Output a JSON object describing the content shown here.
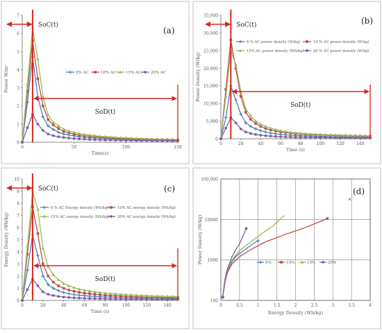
{
  "colors": {
    "6": "#4a7ebb",
    "10": "#be4b48",
    "15": "#98b954",
    "20": "#7d60a0",
    "arrow": "#d7261e",
    "marker": "#c0392b",
    "grid": "#d9d9d9",
    "axis": "#888888",
    "frame": "#bfbfbf",
    "text": "#595959"
  },
  "chart_data": [
    {
      "id": "a",
      "type": "line",
      "panel_label": "(a)",
      "xlabel": "Time(s)",
      "ylabel": "Power W/m²",
      "xlim": [
        0,
        150
      ],
      "ylim": [
        0,
        7
      ],
      "xticks": [
        "0",
        "50",
        "100",
        "150"
      ],
      "yticks": [
        "0",
        "1",
        "2",
        "3",
        "4",
        "5",
        "6",
        "7"
      ],
      "grid": false,
      "legend_position": "top",
      "legend": [
        "6% AC",
        "10% AC",
        "15% AC",
        "20% AC"
      ],
      "annotations": {
        "soc": "SoC(t)",
        "sod": "SoD(t)"
      },
      "series": [
        {
          "name": "6% AC",
          "key": "6",
          "x": [
            0,
            5,
            10,
            15,
            20,
            25,
            30,
            35,
            40,
            45,
            50,
            55,
            60,
            65,
            70,
            75,
            80,
            85,
            90,
            95,
            100,
            105,
            110,
            115,
            120,
            125,
            130,
            135,
            140,
            145,
            150
          ],
          "y": [
            0,
            2.2,
            4.7,
            2.5,
            1.4,
            0.9,
            0.7,
            0.55,
            0.45,
            0.4,
            0.35,
            0.3,
            0.28,
            0.25,
            0.23,
            0.22,
            0.2,
            0.19,
            0.18,
            0.17,
            0.16,
            0.15,
            0.14,
            0.13,
            0.13,
            0.12,
            0.12,
            0.11,
            0.11,
            0.1,
            0.1
          ]
        },
        {
          "name": "10% AC",
          "key": "10",
          "x": [
            0,
            5,
            10,
            15,
            20,
            25,
            30,
            35,
            40,
            45,
            50,
            55,
            60,
            65,
            70,
            75,
            80,
            85,
            90,
            95,
            100,
            105,
            110,
            115,
            120,
            125,
            130,
            135,
            140,
            145,
            150
          ],
          "y": [
            0,
            2.8,
            5.6,
            3.5,
            2.0,
            1.25,
            0.95,
            0.75,
            0.6,
            0.52,
            0.45,
            0.4,
            0.36,
            0.33,
            0.3,
            0.28,
            0.26,
            0.24,
            0.22,
            0.21,
            0.2,
            0.19,
            0.18,
            0.17,
            0.16,
            0.15,
            0.15,
            0.14,
            0.14,
            0.13,
            0.13
          ]
        },
        {
          "name": "15% AC",
          "key": "15",
          "x": [
            0,
            5,
            10,
            15,
            20,
            25,
            30,
            35,
            40,
            45,
            50,
            55,
            60,
            65,
            70,
            75,
            80,
            85,
            90,
            95,
            100,
            105,
            110,
            115,
            120,
            125,
            130,
            135,
            140,
            145,
            150
          ],
          "y": [
            0,
            3.2,
            6.3,
            4.6,
            2.5,
            1.5,
            1.1,
            0.9,
            0.72,
            0.62,
            0.55,
            0.48,
            0.43,
            0.39,
            0.36,
            0.33,
            0.31,
            0.29,
            0.27,
            0.25,
            0.24,
            0.22,
            0.21,
            0.2,
            0.19,
            0.18,
            0.17,
            0.16,
            0.16,
            0.15,
            0.15
          ]
        },
        {
          "name": "20% AC",
          "key": "20",
          "x": [
            0,
            5,
            10,
            15,
            20,
            25,
            30,
            35,
            40,
            45,
            50,
            55,
            60,
            65,
            70,
            75,
            80,
            85,
            90,
            95,
            100,
            105,
            110,
            115,
            120,
            125,
            130,
            135,
            140,
            145,
            150
          ],
          "y": [
            0,
            0.8,
            1.55,
            1.0,
            0.65,
            0.45,
            0.36,
            0.3,
            0.26,
            0.23,
            0.2,
            0.18,
            0.17,
            0.15,
            0.14,
            0.13,
            0.12,
            0.12,
            0.11,
            0.11,
            0.1,
            0.1,
            0.09,
            0.09,
            0.09,
            0.08,
            0.08,
            0.08,
            0.08,
            0.07,
            0.07
          ]
        }
      ]
    },
    {
      "id": "b",
      "type": "line",
      "panel_label": "(b)",
      "xlabel": "Time (s)",
      "ylabel": "Power Density (W/kg)",
      "xlim": [
        0,
        150
      ],
      "ylim": [
        0,
        35000
      ],
      "xticks": [
        "0",
        "20",
        "40",
        "60",
        "80",
        "100",
        "120",
        "140"
      ],
      "yticks": [
        "0",
        "5,000",
        "10,000",
        "15,000",
        "20,000",
        "25,000",
        "30,000",
        "35,000"
      ],
      "grid": false,
      "legend_position": "top",
      "legend": [
        "6 % AC power density (W/kg)",
        "10 % AC power density (W/kg)",
        "15% AC power density (Wh/kg)",
        "20 % AC power density (W/kg)"
      ],
      "annotations": {
        "soc": "SoC(t)",
        "sod": "SoD(t)"
      },
      "series": [
        {
          "name": "6 % AC power density (W/kg)",
          "key": "6",
          "x": [
            0,
            5,
            10,
            15,
            20,
            25,
            30,
            35,
            40,
            45,
            50,
            55,
            60,
            65,
            70,
            75,
            80,
            85,
            90,
            95,
            100,
            105,
            110,
            115,
            120,
            125,
            130,
            135,
            140,
            145,
            150
          ],
          "y": [
            0,
            6000,
            15000,
            11000,
            7000,
            4500,
            3500,
            2800,
            2300,
            1900,
            1600,
            1400,
            1250,
            1100,
            1000,
            900,
            850,
            800,
            750,
            700,
            650,
            620,
            600,
            570,
            550,
            520,
            500,
            480,
            460,
            440,
            420
          ]
        },
        {
          "name": "10 % AC power density (W/kg)",
          "key": "10",
          "x": [
            0,
            5,
            10,
            15,
            20,
            25,
            30,
            35,
            40,
            45,
            50,
            55,
            60,
            65,
            70,
            75,
            80,
            85,
            90,
            95,
            100,
            105,
            110,
            115,
            120,
            125,
            130,
            135,
            140,
            145,
            150
          ],
          "y": [
            0,
            14000,
            28000,
            20000,
            12000,
            7500,
            5500,
            4300,
            3500,
            2900,
            2500,
            2200,
            1950,
            1750,
            1600,
            1450,
            1350,
            1250,
            1150,
            1100,
            1050,
            1000,
            950,
            900,
            870,
            840,
            810,
            780,
            750,
            720,
            700
          ]
        },
        {
          "name": "15% AC power density (Wh/kg)",
          "key": "15",
          "x": [
            0,
            5,
            10,
            15,
            20,
            25,
            30,
            35,
            40,
            45,
            50,
            55,
            60,
            65,
            70,
            75,
            80,
            85,
            90,
            95,
            100,
            105,
            110,
            115,
            120,
            125,
            130,
            135,
            140,
            145,
            150
          ],
          "y": [
            0,
            12000,
            25000,
            21000,
            13500,
            8500,
            6500,
            5000,
            4100,
            3500,
            3000,
            2600,
            2300,
            2050,
            1850,
            1700,
            1550,
            1450,
            1350,
            1250,
            1200,
            1150,
            1100,
            1050,
            1000,
            960,
            920,
            880,
            850,
            820,
            800
          ]
        },
        {
          "name": "20 % AC power density (W/kg)",
          "key": "20",
          "x": [
            0,
            5,
            10,
            15,
            20,
            25,
            30,
            35,
            40,
            45,
            50,
            55,
            60,
            65,
            70,
            75,
            80,
            85,
            90,
            95,
            100,
            105,
            110,
            115,
            120,
            125,
            130,
            135,
            140,
            145,
            150
          ],
          "y": [
            0,
            3000,
            6000,
            4500,
            2800,
            1900,
            1500,
            1200,
            1000,
            850,
            750,
            650,
            580,
            520,
            480,
            440,
            400,
            380,
            350,
            330,
            310,
            290,
            280,
            260,
            250,
            240,
            230,
            220,
            210,
            200,
            190
          ]
        }
      ]
    },
    {
      "id": "c",
      "type": "line",
      "panel_label": "(c)",
      "xlabel": "Time (s)",
      "ylabel": "Energy Density (Wh/kg)",
      "xlim": [
        0,
        150
      ],
      "ylim": [
        0,
        10
      ],
      "xticks": [
        "0",
        "20",
        "40",
        "60",
        "80",
        "100",
        "120",
        "140"
      ],
      "yticks": [
        "0",
        "1",
        "2",
        "3",
        "4",
        "5",
        "6",
        "7",
        "8",
        "9",
        "10"
      ],
      "grid": false,
      "legend_position": "top",
      "legend": [
        "6 % AC Energy density (Wh/kg)",
        "10% AC energy density (Wh/kg)",
        "15% AC energy density (Wh/kg)",
        "20% AC energy density (Wh/kg)"
      ],
      "annotations": {
        "soc": "SoC(t)",
        "sod": "SoD(t)"
      },
      "series": [
        {
          "name": "6 % AC Energy density (Wh/kg)",
          "key": "6",
          "x": [
            0,
            5,
            10,
            15,
            20,
            25,
            30,
            35,
            40,
            45,
            50,
            55,
            60,
            65,
            70,
            75,
            80,
            85,
            90,
            95,
            100,
            105,
            110,
            115,
            120,
            125,
            130,
            135,
            140,
            145,
            150
          ],
          "y": [
            0,
            2.5,
            5.4,
            3.7,
            2.0,
            1.3,
            1.0,
            0.8,
            0.65,
            0.55,
            0.48,
            0.43,
            0.39,
            0.35,
            0.32,
            0.3,
            0.28,
            0.26,
            0.25,
            0.23,
            0.22,
            0.21,
            0.2,
            0.19,
            0.18,
            0.18,
            0.17,
            0.16,
            0.16,
            0.15,
            0.15
          ]
        },
        {
          "name": "10% AC energy density (Wh/kg)",
          "key": "10",
          "x": [
            0,
            5,
            10,
            15,
            20,
            25,
            30,
            35,
            40,
            45,
            50,
            55,
            60,
            65,
            70,
            75,
            80,
            85,
            90,
            95,
            100,
            105,
            110,
            115,
            120,
            125,
            130,
            135,
            140,
            145,
            150
          ],
          "y": [
            0,
            3.8,
            7.7,
            5.5,
            3.0,
            2.0,
            1.5,
            1.2,
            1.0,
            0.85,
            0.75,
            0.67,
            0.6,
            0.55,
            0.5,
            0.46,
            0.43,
            0.4,
            0.38,
            0.36,
            0.34,
            0.32,
            0.31,
            0.3,
            0.28,
            0.27,
            0.26,
            0.25,
            0.24,
            0.24,
            0.23
          ]
        },
        {
          "name": "15% AC energy density (Wh/kg)",
          "key": "15",
          "x": [
            0,
            5,
            10,
            15,
            20,
            25,
            30,
            35,
            40,
            45,
            50,
            55,
            60,
            65,
            70,
            75,
            80,
            85,
            90,
            95,
            100,
            105,
            110,
            115,
            120,
            125,
            130,
            135,
            140,
            145,
            150
          ],
          "y": [
            0,
            4.5,
            9.0,
            7.5,
            4.3,
            2.8,
            2.1,
            1.7,
            1.4,
            1.2,
            1.05,
            0.93,
            0.84,
            0.76,
            0.7,
            0.65,
            0.6,
            0.56,
            0.53,
            0.5,
            0.47,
            0.45,
            0.43,
            0.41,
            0.39,
            0.37,
            0.36,
            0.35,
            0.34,
            0.33,
            0.32
          ]
        },
        {
          "name": "20% AC energy density (Wh/kg)",
          "key": "20",
          "x": [
            0,
            5,
            10,
            15,
            20,
            25,
            30,
            35,
            40,
            45,
            50,
            55,
            60,
            65,
            70,
            75,
            80,
            85,
            90,
            95,
            100,
            105,
            110,
            115,
            120,
            125,
            130,
            135,
            140,
            145,
            150
          ],
          "y": [
            0,
            0.9,
            1.75,
            1.2,
            0.7,
            0.5,
            0.4,
            0.33,
            0.28,
            0.24,
            0.21,
            0.19,
            0.17,
            0.16,
            0.15,
            0.14,
            0.13,
            0.12,
            0.11,
            0.11,
            0.1,
            0.1,
            0.09,
            0.09,
            0.09,
            0.08,
            0.08,
            0.08,
            0.07,
            0.07,
            0.07
          ]
        }
      ]
    },
    {
      "id": "d",
      "type": "scatter",
      "panel_label": "(d)",
      "xlabel": "Energy Density (Wh/kg)",
      "ylabel": "Power Density (W/kg)",
      "xlim": [
        0,
        4
      ],
      "ylim": [
        100,
        100000
      ],
      "y_scale": "log",
      "xticks": [
        "0",
        "0.5",
        "1",
        "1.5",
        "2",
        "2.5",
        "3",
        "3.5",
        "4"
      ],
      "yticks": [
        "100",
        "1000",
        "10000",
        "100,000"
      ],
      "grid": true,
      "legend_position": "center",
      "legend": [
        "6%",
        "10%",
        "15%",
        "20%"
      ],
      "series": [
        {
          "name": "6%",
          "key": "6",
          "x": [
            0.05,
            0.1,
            0.15,
            0.2,
            0.3,
            0.4,
            0.5,
            0.65,
            0.8,
            1.0
          ],
          "y": [
            120,
            250,
            400,
            600,
            900,
            1200,
            1450,
            1800,
            2300,
            3000
          ]
        },
        {
          "name": "10%",
          "key": "10",
          "x": [
            0.05,
            0.15,
            0.3,
            0.5,
            0.8,
            1.2,
            1.7,
            2.2,
            2.6,
            2.85
          ],
          "y": [
            120,
            450,
            800,
            1200,
            1800,
            2800,
            4200,
            6000,
            8500,
            10500
          ]
        },
        {
          "name": "15%",
          "key": "15",
          "x": [
            0.05,
            0.15,
            0.3,
            0.5,
            0.8,
            1.1,
            1.4,
            1.7,
            3.45
          ],
          "y": [
            120,
            500,
            1000,
            1700,
            2800,
            4500,
            7000,
            12500,
            32000
          ]
        },
        {
          "name": "20%",
          "key": "20",
          "x": [
            0.05,
            0.1,
            0.15,
            0.2,
            0.25,
            0.3,
            0.4,
            0.5,
            0.68
          ],
          "y": [
            120,
            300,
            500,
            700,
            900,
            1200,
            1800,
            2500,
            6000
          ]
        }
      ]
    }
  ]
}
